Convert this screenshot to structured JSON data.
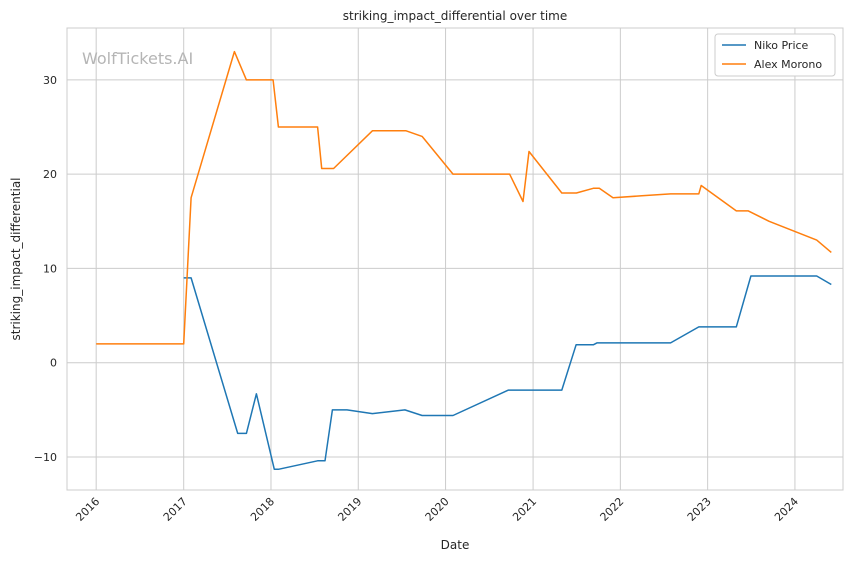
{
  "watermark": "WolfTickets.AI",
  "chart_data": {
    "type": "line",
    "title": "striking_impact_differential over time",
    "xlabel": "Date",
    "ylabel": "striking_impact_differential",
    "xlim": [
      "2015-09-01",
      "2024-07-20"
    ],
    "ylim": [
      -13.5,
      35.5
    ],
    "x_ticks": [
      "2016",
      "2017",
      "2018",
      "2019",
      "2020",
      "2021",
      "2022",
      "2023",
      "2024"
    ],
    "y_ticks": [
      -10,
      0,
      10,
      20,
      30
    ],
    "grid": true,
    "legend_position": "top-right",
    "series": [
      {
        "name": "Niko Price",
        "color": "#1f77b4",
        "points": [
          [
            "2017-01-01",
            9.0
          ],
          [
            "2017-02-01",
            9.0
          ],
          [
            "2017-08-15",
            -7.5
          ],
          [
            "2017-09-20",
            -7.5
          ],
          [
            "2017-11-01",
            -3.3
          ],
          [
            "2018-01-15",
            -11.3
          ],
          [
            "2018-02-01",
            -11.3
          ],
          [
            "2018-07-15",
            -10.4
          ],
          [
            "2018-08-15",
            -10.4
          ],
          [
            "2018-09-15",
            -5.0
          ],
          [
            "2018-11-15",
            -5.0
          ],
          [
            "2019-03-01",
            -5.4
          ],
          [
            "2019-07-15",
            -5.0
          ],
          [
            "2019-09-25",
            -5.6
          ],
          [
            "2020-02-01",
            -5.6
          ],
          [
            "2020-09-20",
            -2.9
          ],
          [
            "2021-01-01",
            -2.9
          ],
          [
            "2021-05-01",
            -2.9
          ],
          [
            "2021-06-30",
            1.9
          ],
          [
            "2021-09-10",
            1.9
          ],
          [
            "2021-09-25",
            2.1
          ],
          [
            "2022-07-30",
            2.1
          ],
          [
            "2022-11-25",
            3.8
          ],
          [
            "2023-05-01",
            3.8
          ],
          [
            "2023-07-01",
            9.2
          ],
          [
            "2024-04-01",
            9.2
          ],
          [
            "2024-06-01",
            8.3
          ]
        ]
      },
      {
        "name": "Alex Morono",
        "color": "#ff7f0e",
        "points": [
          [
            "2016-01-01",
            2.0
          ],
          [
            "2017-01-01",
            2.0
          ],
          [
            "2017-02-01",
            17.5
          ],
          [
            "2017-08-01",
            33.0
          ],
          [
            "2017-09-20",
            30.0
          ],
          [
            "2018-01-10",
            30.0
          ],
          [
            "2018-02-01",
            25.0
          ],
          [
            "2018-07-15",
            25.0
          ],
          [
            "2018-08-01",
            20.6
          ],
          [
            "2018-09-20",
            20.6
          ],
          [
            "2019-03-01",
            24.6
          ],
          [
            "2019-07-20",
            24.6
          ],
          [
            "2019-09-25",
            24.0
          ],
          [
            "2020-02-01",
            20.0
          ],
          [
            "2020-09-25",
            20.0
          ],
          [
            "2020-11-20",
            17.1
          ],
          [
            "2020-12-15",
            22.4
          ],
          [
            "2021-05-01",
            18.0
          ],
          [
            "2021-07-01",
            18.0
          ],
          [
            "2021-09-10",
            18.5
          ],
          [
            "2021-10-05",
            18.5
          ],
          [
            "2021-12-01",
            17.5
          ],
          [
            "2022-04-01",
            17.7
          ],
          [
            "2022-07-30",
            17.9
          ],
          [
            "2022-11-25",
            17.9
          ],
          [
            "2022-12-05",
            18.8
          ],
          [
            "2023-05-01",
            16.1
          ],
          [
            "2023-06-20",
            16.1
          ],
          [
            "2023-09-15",
            15.0
          ],
          [
            "2024-04-01",
            13.0
          ],
          [
            "2024-06-01",
            11.7
          ]
        ]
      }
    ]
  }
}
